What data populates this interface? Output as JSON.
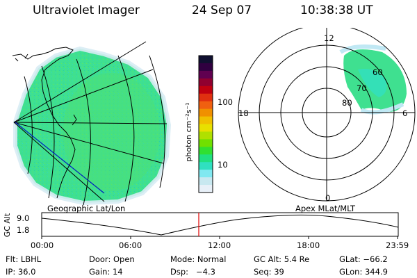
{
  "header": {
    "title": "Ultraviolet Imager",
    "date": "24 Sep 07",
    "time": "10:38:38 UT"
  },
  "colorbar": {
    "label": "photon cm⁻²s⁻¹",
    "ticks": [
      "100",
      "10"
    ],
    "colors": [
      "#101030",
      "#300040",
      "#600050",
      "#900030",
      "#c00010",
      "#e03010",
      "#f06010",
      "#f09000",
      "#f0c000",
      "#e8e000",
      "#b0e000",
      "#70e000",
      "#30e030",
      "#20e080",
      "#30e0c0",
      "#80e8f0",
      "#c8e8f0",
      "#e8f0f8"
    ]
  },
  "map_left": {
    "label": "Geographic Lat/Lon",
    "fill_color": "#3fe090"
  },
  "polar_right": {
    "label": "Apex MLat/MLT",
    "mlt_labels": {
      "top": "12",
      "left": "18",
      "right": "6",
      "bottom": "0"
    },
    "lat_labels": [
      "60",
      "70",
      "80"
    ]
  },
  "altitude_plot": {
    "ylabel": "GC Alt",
    "yticks": [
      "9.0",
      "1.8"
    ],
    "xticks": [
      "00:00",
      "06:00",
      "12:00",
      "18:00",
      "23:59"
    ],
    "current_marker_color": "#e00000"
  },
  "info": {
    "row1": {
      "flt": "Flt: LBHL",
      "door": "Door: Open",
      "mode": "Mode: Normal",
      "gcalt": "GC Alt: 5.4 Re",
      "glat": "GLat: −66.2"
    },
    "row2": {
      "ip": "IP: 36.0",
      "gain": "Gain: 14",
      "dsp": "Dsp:   −4.3",
      "seq": "Seq: 39",
      "glon": "GLon: 344.9"
    }
  }
}
